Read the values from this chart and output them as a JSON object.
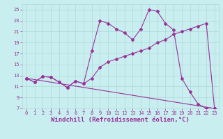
{
  "title": "",
  "xlabel": "Windchill (Refroidissement éolien,°C)",
  "ylabel": "",
  "background_color": "#c8eef0",
  "grid_color": "#b0d8d8",
  "line_color": "#993399",
  "xlim": [
    -0.5,
    23.5
  ],
  "ylim": [
    7,
    26
  ],
  "xticks": [
    0,
    1,
    2,
    3,
    4,
    5,
    6,
    7,
    8,
    9,
    10,
    11,
    12,
    13,
    14,
    15,
    16,
    17,
    18,
    19,
    20,
    21,
    22,
    23
  ],
  "yticks": [
    7,
    9,
    11,
    13,
    15,
    17,
    19,
    21,
    23,
    25
  ],
  "line1_x": [
    0,
    1,
    2,
    3,
    4,
    5,
    6,
    7,
    8,
    9,
    10,
    11,
    12,
    13,
    14,
    15,
    16,
    17,
    18,
    19,
    20,
    21,
    22,
    23
  ],
  "line1_y": [
    12.5,
    11.8,
    12.8,
    12.7,
    11.8,
    10.8,
    12.0,
    11.5,
    17.5,
    23.0,
    22.5,
    21.5,
    20.8,
    19.5,
    21.5,
    25.0,
    24.7,
    22.5,
    21.3,
    12.5,
    10.0,
    7.8,
    7.0,
    7.0
  ],
  "line2_x": [
    0,
    1,
    2,
    3,
    4,
    5,
    6,
    7,
    8,
    9,
    10,
    11,
    12,
    13,
    14,
    15,
    16,
    17,
    18,
    19,
    20,
    21,
    22,
    23
  ],
  "line2_y": [
    12.5,
    11.8,
    12.8,
    12.7,
    11.8,
    10.8,
    12.0,
    11.5,
    12.5,
    14.5,
    15.5,
    16.0,
    16.5,
    17.0,
    17.5,
    18.0,
    19.0,
    19.5,
    20.5,
    21.0,
    21.5,
    22.0,
    22.5,
    7.0
  ],
  "line3_x": [
    0,
    23
  ],
  "line3_y": [
    12.5,
    7.0
  ],
  "figsize": [
    3.2,
    2.0
  ],
  "dpi": 100,
  "tick_fontsize": 5,
  "xlabel_fontsize": 6.5,
  "marker_size": 2,
  "linewidth": 0.8
}
